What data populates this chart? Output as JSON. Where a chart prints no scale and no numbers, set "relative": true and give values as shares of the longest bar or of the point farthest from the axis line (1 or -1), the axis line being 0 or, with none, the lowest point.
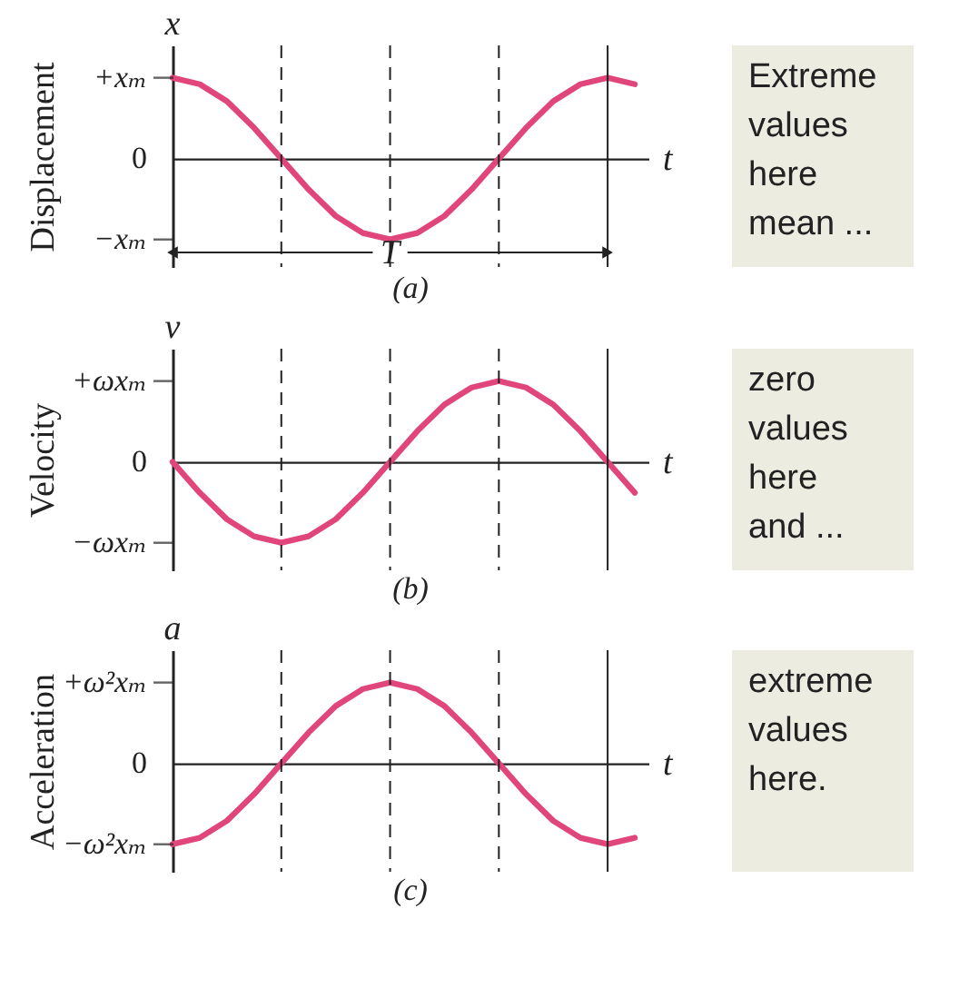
{
  "chart_data": [
    {
      "type": "line",
      "title": "(a)",
      "ylabel": "Displacement",
      "xlabel": "t",
      "relative": true,
      "categories": [
        null,
        null,
        null,
        null,
        null,
        null,
        null,
        null,
        null,
        null,
        null,
        null,
        null,
        null,
        null,
        null,
        null,
        null
      ],
      "series": [
        {
          "color": "#e0457b",
          "values": [
            1,
            0.92,
            0.71,
            0.38,
            0,
            -0.38,
            -0.71,
            -0.92,
            -1,
            -0.92,
            -0.71,
            -0.38,
            0,
            0.38,
            0.71,
            0.92,
            1,
            0.92
          ]
        }
      ],
      "grid": "x",
      "annotations": [
        "x",
        "Extreme\nvalues\nhere\nmean ...",
        "+xₘ",
        "0",
        "−xₘ",
        "T"
      ]
    },
    {
      "type": "line",
      "title": "(b)",
      "ylabel": "Velocity",
      "xlabel": "t",
      "relative": true,
      "categories": [
        null,
        null,
        null,
        null,
        null,
        null,
        null,
        null,
        null,
        null,
        null,
        null,
        null,
        null,
        null,
        null,
        null,
        null
      ],
      "series": [
        {
          "color": "#e0457b",
          "values": [
            0,
            -0.38,
            -0.71,
            -0.92,
            -1,
            -0.92,
            -0.71,
            -0.38,
            0,
            0.38,
            0.71,
            0.92,
            1,
            0.92,
            0.71,
            0.38,
            0,
            -0.38
          ]
        }
      ],
      "grid": "x",
      "annotations": [
        "v",
        "zero\nvalues\nhere\nand ...",
        "+ωxₘ",
        "0",
        "−ωxₘ"
      ]
    },
    {
      "type": "line",
      "title": "(c)",
      "ylabel": "Acceleration",
      "xlabel": "t",
      "relative": true,
      "categories": [
        null,
        null,
        null,
        null,
        null,
        null,
        null,
        null,
        null,
        null,
        null,
        null,
        null,
        null,
        null,
        null,
        null,
        null
      ],
      "series": [
        {
          "color": "#e0457b",
          "values": [
            -1,
            -0.92,
            -0.71,
            -0.38,
            0,
            0.38,
            0.71,
            0.92,
            1,
            0.92,
            0.71,
            0.38,
            0,
            -0.38,
            -0.71,
            -0.92,
            -1,
            -0.92
          ]
        }
      ],
      "grid": "x",
      "annotations": [
        "a",
        "extreme\nvalues\nhere.",
        "+ω²xₘ",
        "0",
        "−ω²xₘ"
      ]
    }
  ]
}
